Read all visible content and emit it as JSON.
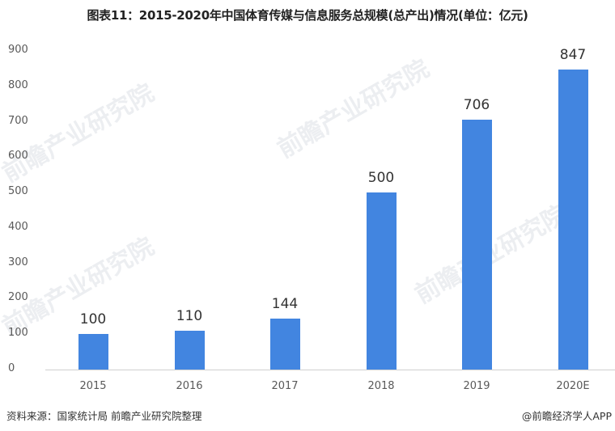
{
  "title": "图表11：2015-2020年中国体育传媒与信息服务总规模(总产出)情况(单位：亿元)",
  "footer": {
    "source": "资料来源：国家统计局 前瞻产业研究院整理",
    "credit": "@前瞻经济学人APP"
  },
  "watermark": "前瞻产业研究院",
  "colors": {
    "bar": "#4285e0",
    "axis": "#d0d0d0",
    "tick_text": "#595959",
    "label_text": "#333333"
  },
  "chart_data": {
    "type": "bar",
    "title": "图表11：2015-2020年中国体育传媒与信息服务总规模(总产出)情况(单位：亿元)",
    "categories": [
      "2015",
      "2016",
      "2017",
      "2018",
      "2019",
      "2020E"
    ],
    "values": [
      100,
      110,
      144,
      500,
      706,
      847
    ],
    "data_labels": [
      "100",
      "110",
      "144",
      "500",
      "706",
      "847"
    ],
    "xlabel": "",
    "ylabel": "",
    "unit": "亿元",
    "ylim": [
      0,
      900
    ],
    "yticks": [
      0,
      100,
      200,
      300,
      400,
      500,
      600,
      700,
      800,
      900
    ],
    "grid": false,
    "legend": null
  }
}
